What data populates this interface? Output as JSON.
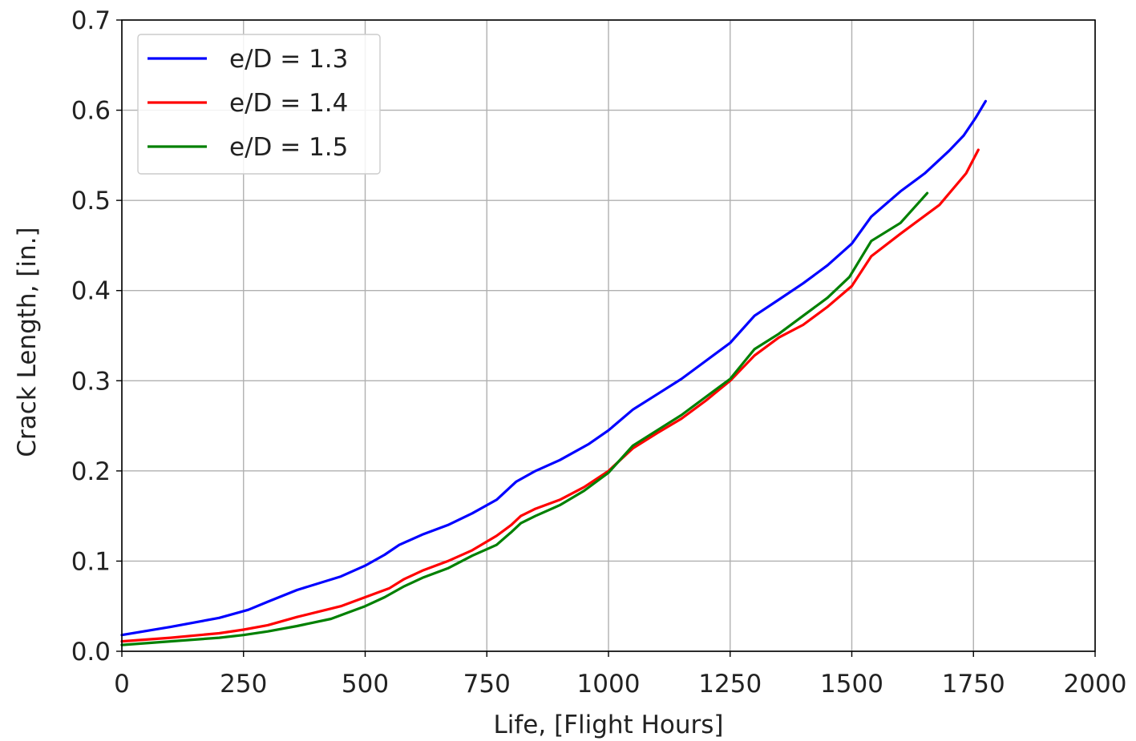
{
  "chart_data": {
    "type": "line",
    "title": "",
    "xlabel": "Life, [Flight Hours]",
    "ylabel": "Crack Length, [in.]",
    "xlim": [
      0,
      2000
    ],
    "ylim": [
      0,
      0.7
    ],
    "xticks": [
      0,
      250,
      500,
      750,
      1000,
      1250,
      1500,
      1750,
      2000
    ],
    "yticks": [
      "0.0",
      "0.1",
      "0.2",
      "0.3",
      "0.4",
      "0.5",
      "0.6",
      "0.7"
    ],
    "grid": true,
    "legend_position": "top-left",
    "series": [
      {
        "name": "e/D = 1.3",
        "color": "#0000ff",
        "points": [
          [
            0,
            0.018
          ],
          [
            100,
            0.027
          ],
          [
            200,
            0.037
          ],
          [
            260,
            0.046
          ],
          [
            300,
            0.055
          ],
          [
            360,
            0.068
          ],
          [
            450,
            0.083
          ],
          [
            500,
            0.095
          ],
          [
            540,
            0.107
          ],
          [
            570,
            0.118
          ],
          [
            620,
            0.13
          ],
          [
            670,
            0.14
          ],
          [
            720,
            0.153
          ],
          [
            770,
            0.168
          ],
          [
            810,
            0.188
          ],
          [
            850,
            0.2
          ],
          [
            900,
            0.212
          ],
          [
            960,
            0.23
          ],
          [
            1000,
            0.245
          ],
          [
            1050,
            0.268
          ],
          [
            1100,
            0.285
          ],
          [
            1150,
            0.302
          ],
          [
            1200,
            0.322
          ],
          [
            1250,
            0.342
          ],
          [
            1300,
            0.372
          ],
          [
            1350,
            0.39
          ],
          [
            1400,
            0.408
          ],
          [
            1450,
            0.428
          ],
          [
            1500,
            0.452
          ],
          [
            1540,
            0.482
          ],
          [
            1600,
            0.51
          ],
          [
            1650,
            0.53
          ],
          [
            1700,
            0.555
          ],
          [
            1730,
            0.572
          ],
          [
            1755,
            0.592
          ],
          [
            1775,
            0.61
          ]
        ]
      },
      {
        "name": "e/D = 1.4",
        "color": "#ff0000",
        "points": [
          [
            0,
            0.011
          ],
          [
            100,
            0.015
          ],
          [
            200,
            0.02
          ],
          [
            250,
            0.024
          ],
          [
            300,
            0.029
          ],
          [
            360,
            0.038
          ],
          [
            450,
            0.05
          ],
          [
            500,
            0.06
          ],
          [
            550,
            0.07
          ],
          [
            580,
            0.08
          ],
          [
            620,
            0.09
          ],
          [
            670,
            0.1
          ],
          [
            720,
            0.112
          ],
          [
            770,
            0.128
          ],
          [
            800,
            0.14
          ],
          [
            820,
            0.15
          ],
          [
            850,
            0.158
          ],
          [
            900,
            0.168
          ],
          [
            950,
            0.182
          ],
          [
            1000,
            0.2
          ],
          [
            1050,
            0.225
          ],
          [
            1100,
            0.242
          ],
          [
            1150,
            0.258
          ],
          [
            1200,
            0.278
          ],
          [
            1250,
            0.3
          ],
          [
            1300,
            0.328
          ],
          [
            1350,
            0.348
          ],
          [
            1400,
            0.362
          ],
          [
            1450,
            0.382
          ],
          [
            1500,
            0.405
          ],
          [
            1540,
            0.438
          ],
          [
            1600,
            0.463
          ],
          [
            1680,
            0.495
          ],
          [
            1735,
            0.53
          ],
          [
            1760,
            0.556
          ]
        ]
      },
      {
        "name": "e/D = 1.5",
        "color": "#008000",
        "points": [
          [
            0,
            0.007
          ],
          [
            100,
            0.011
          ],
          [
            200,
            0.015
          ],
          [
            250,
            0.018
          ],
          [
            300,
            0.022
          ],
          [
            360,
            0.028
          ],
          [
            430,
            0.036
          ],
          [
            500,
            0.05
          ],
          [
            540,
            0.06
          ],
          [
            580,
            0.072
          ],
          [
            620,
            0.082
          ],
          [
            670,
            0.092
          ],
          [
            720,
            0.106
          ],
          [
            770,
            0.118
          ],
          [
            800,
            0.132
          ],
          [
            820,
            0.142
          ],
          [
            850,
            0.15
          ],
          [
            900,
            0.162
          ],
          [
            950,
            0.178
          ],
          [
            1000,
            0.198
          ],
          [
            1050,
            0.228
          ],
          [
            1100,
            0.245
          ],
          [
            1150,
            0.262
          ],
          [
            1200,
            0.282
          ],
          [
            1250,
            0.302
          ],
          [
            1300,
            0.335
          ],
          [
            1350,
            0.352
          ],
          [
            1400,
            0.372
          ],
          [
            1450,
            0.392
          ],
          [
            1495,
            0.415
          ],
          [
            1540,
            0.455
          ],
          [
            1600,
            0.475
          ],
          [
            1655,
            0.508
          ]
        ]
      }
    ]
  }
}
